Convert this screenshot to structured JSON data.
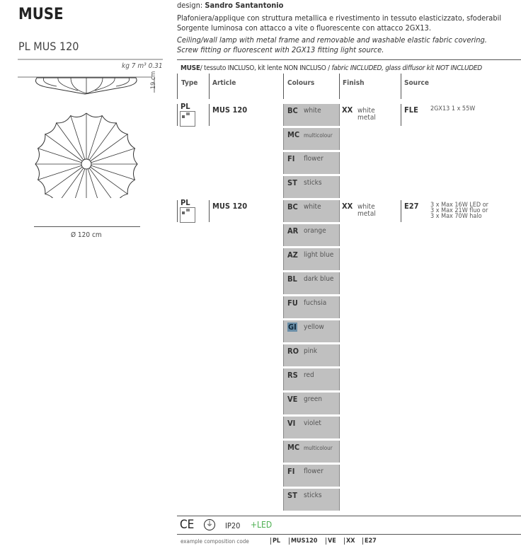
{
  "product": {
    "title": "MUSE",
    "subtitle": "PL MUS 120"
  },
  "specs": {
    "weight_volume": "kg 7 m³ 0.31",
    "height": "19 cm",
    "diameter": "Ø 120 cm"
  },
  "design": {
    "label": "design:",
    "designer": "Sandro Santantonio"
  },
  "description": {
    "it_1": "Plafoniera/applique con struttura metallica e rivestimento in tessuto elasticizzato, sfoderabil",
    "it_2": "Sorgente luminosa con attacco a vite o fluorescente con attacco 2GX13.",
    "en_1": "Ceiling/wall lamp with metal frame and removable and washable elastic fabric covering.",
    "en_2": "Screw fitting or fluorescent with 2GX13 fitting light source."
  },
  "table": {
    "caption_bold": "MUSE",
    "caption_it": "/ tessuto INCLUSO, kit lente NON INCLUSO  /",
    "caption_en": "fabric INCLUDED, glass diffusor kit NOT INCLUDED",
    "headers": {
      "type": "Type",
      "article": "Article",
      "colours": "Colours",
      "finish": "Finish",
      "source": "Source"
    },
    "groups": [
      {
        "type": "PL",
        "article": "MUS 120",
        "finish_code": "XX",
        "finish_name": "white metal",
        "source_code": "FLE",
        "source_desc": "2GX13 1 x 55W",
        "colours": [
          {
            "code": "BC",
            "name": "white"
          },
          {
            "code": "MC",
            "name": "multicolour"
          },
          {
            "code": "FI",
            "name": "flower"
          },
          {
            "code": "ST",
            "name": "sticks"
          }
        ]
      },
      {
        "type": "PL",
        "article": "MUS 120",
        "finish_code": "XX",
        "finish_name": "white metal",
        "source_code": "E27",
        "source_desc": "3 x Max 16W LED or\n3 x Max 21W fluo or\n3 x Max 70W halo",
        "colours": [
          {
            "code": "BC",
            "name": "white"
          },
          {
            "code": "AR",
            "name": "orange"
          },
          {
            "code": "AZ",
            "name": "light blue"
          },
          {
            "code": "BL",
            "name": "dark blue"
          },
          {
            "code": "FU",
            "name": "fuchsia"
          },
          {
            "code": "GI",
            "name": "yellow",
            "selected": true
          },
          {
            "code": "RO",
            "name": "pink"
          },
          {
            "code": "RS",
            "name": "red"
          },
          {
            "code": "VE",
            "name": "green"
          },
          {
            "code": "VI",
            "name": "violet"
          },
          {
            "code": "MC",
            "name": "multicolour"
          },
          {
            "code": "FI",
            "name": "flower"
          },
          {
            "code": "ST",
            "name": "sticks"
          }
        ]
      }
    ]
  },
  "certifications": {
    "ce": "CE",
    "ip": "IP20",
    "led": "+LED",
    "led_color": "#4caf50"
  },
  "example": {
    "label": "example composition code",
    "codes": [
      "PL",
      "MUS120",
      "VE",
      "XX",
      "E27"
    ]
  }
}
